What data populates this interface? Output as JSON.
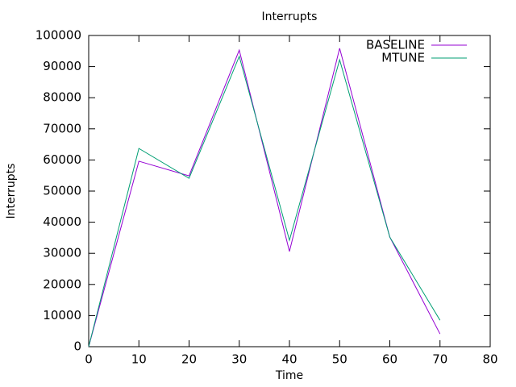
{
  "chart_data": {
    "type": "line",
    "title": "Interrupts",
    "x_label": "Time",
    "y_label": "Interrupts",
    "x": [
      0,
      10,
      20,
      30,
      40,
      50,
      60,
      70
    ],
    "series": [
      {
        "name": "BASELINE",
        "color": "#9400d3",
        "values": [
          0,
          59600,
          54900,
          95300,
          30600,
          95900,
          35200,
          4100
        ]
      },
      {
        "name": "MTUNE",
        "color": "#009e73",
        "values": [
          0,
          63700,
          54100,
          93300,
          34200,
          92200,
          35200,
          8500
        ]
      }
    ],
    "xlim": [
      0,
      80
    ],
    "xticks": [
      0,
      10,
      20,
      30,
      40,
      50,
      60,
      70,
      80
    ],
    "ylim": [
      0,
      100000
    ],
    "yticks": [
      0,
      10000,
      20000,
      30000,
      40000,
      50000,
      60000,
      70000,
      80000,
      90000,
      100000
    ],
    "legend": "top-right"
  }
}
